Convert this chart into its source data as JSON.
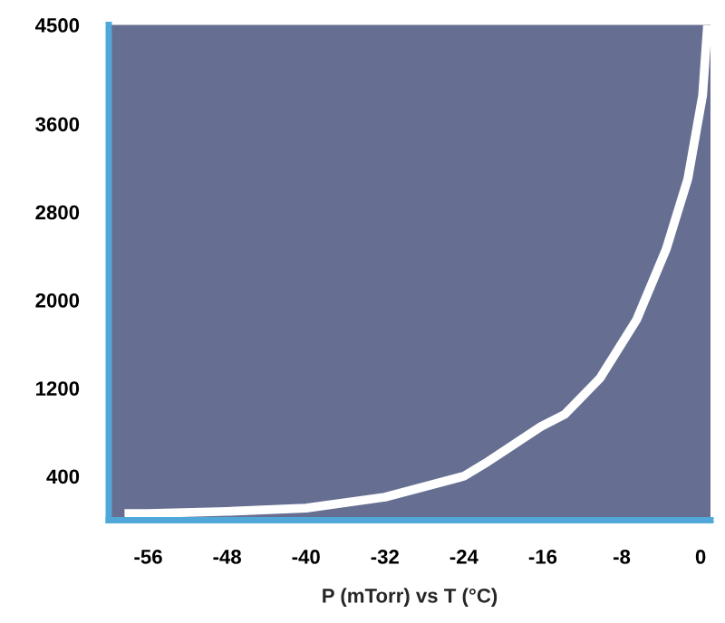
{
  "chart_data": {
    "type": "line",
    "xlabel": "P (mTorr) vs T (°C)",
    "x": [
      -58.4,
      -56,
      -48,
      -40,
      -32,
      -24,
      -21.6,
      -16.2,
      -13.8,
      -10.2,
      -6.5,
      -3.5,
      -1.3,
      0.2,
      0.7
    ],
    "series": [
      {
        "color": "#ffffff",
        "values": [
          60,
          60,
          80,
          110,
          210,
          400,
          530,
          850,
          960,
          1290,
          1820,
          2460,
          3100,
          3860,
          4500
        ]
      }
    ],
    "xlim": [
      -60,
      1
    ],
    "xticks": [
      -56,
      -48,
      -40,
      -32,
      -24,
      -16,
      -8,
      0
    ],
    "ylim": [
      0,
      4500
    ],
    "yticks": [
      400,
      1200,
      2000,
      2800,
      3600,
      4500
    ],
    "grid": false,
    "legend": false,
    "marker": "none",
    "line_style": "solid"
  }
}
